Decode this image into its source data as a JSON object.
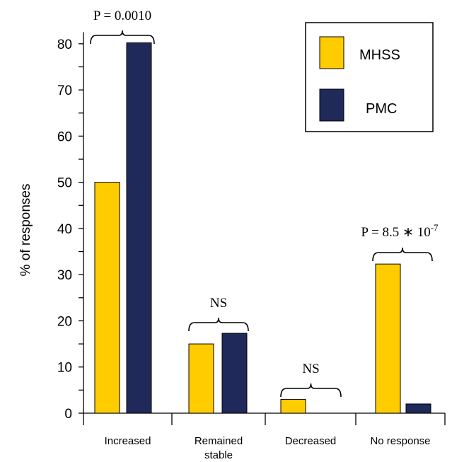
{
  "chart_data": {
    "type": "bar",
    "categories": [
      "Increased",
      "Remained stable",
      "Decreased",
      "No response"
    ],
    "category_lines": [
      [
        "Increased"
      ],
      [
        "Remained",
        "stable"
      ],
      [
        "Decreased"
      ],
      [
        "No response"
      ]
    ],
    "series": [
      {
        "name": "MHSS",
        "color": "#FFCC00",
        "values": [
          50,
          15,
          3,
          32.3
        ]
      },
      {
        "name": "PMC",
        "color": "#1F2A5A",
        "values": [
          80.2,
          17.3,
          0,
          2
        ]
      }
    ],
    "ylabel": "% of responses",
    "xlabel": "",
    "ylim": [
      0,
      80
    ],
    "yticks": [
      0,
      10,
      20,
      30,
      40,
      50,
      60,
      70,
      80
    ],
    "minor_tick_step": 5,
    "legend_position": "top-right",
    "annotations": [
      {
        "category": "Increased",
        "text": "P = 0.0010"
      },
      {
        "category": "Remained stable",
        "text": "NS"
      },
      {
        "category": "Decreased",
        "text": "NS"
      },
      {
        "category": "No response",
        "text": "P = 8.5 ∗ 10",
        "superscript": "-7"
      }
    ]
  }
}
